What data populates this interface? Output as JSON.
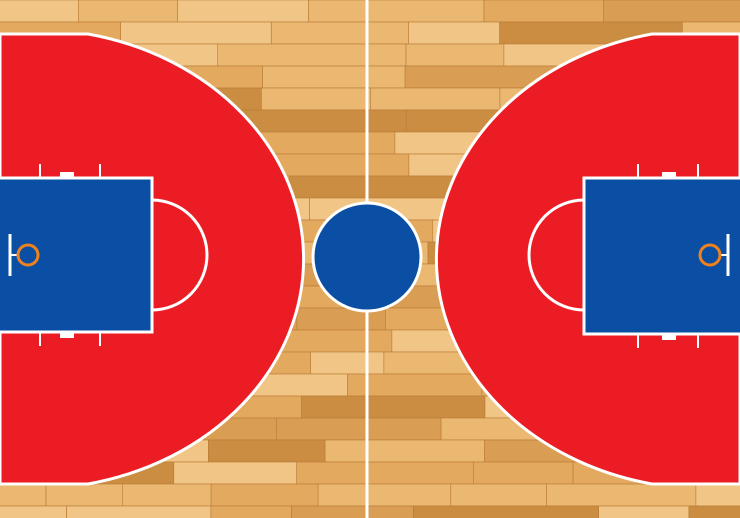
{
  "court": {
    "colors": {
      "wood_light": "#f2c98a",
      "wood_mid": "#e3a95e",
      "wood_dark": "#c98a3f",
      "three_point_area": "#ec1c24",
      "key_area": "#0a4fa3",
      "center_circle": "#0a4fa3",
      "lines": "#ffffff",
      "rim": "#f0821e"
    }
  }
}
